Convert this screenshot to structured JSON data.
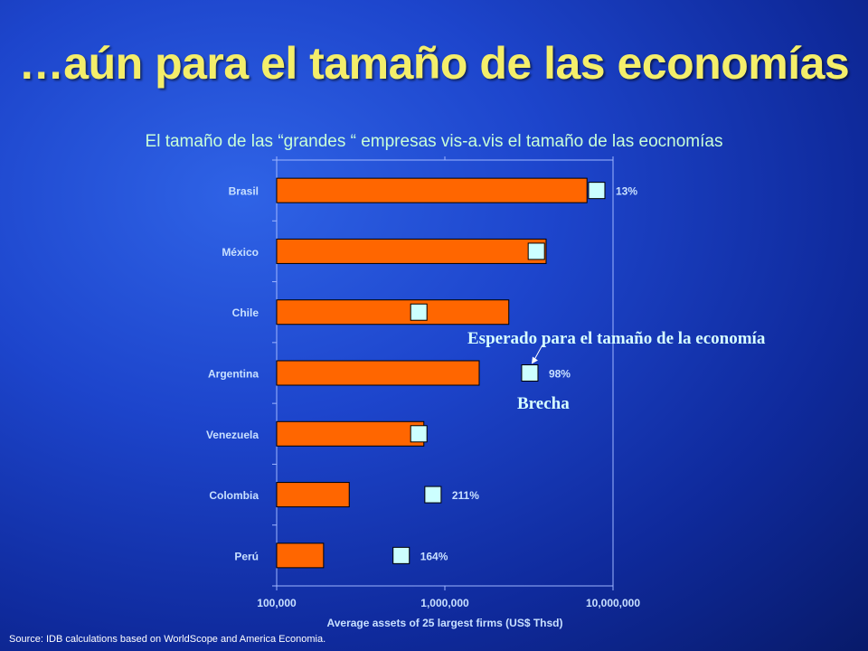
{
  "slide": {
    "title": "…aún para el tamaño de las economías",
    "subtitle": "El tamaño de las “grandes “ empresas vis-a.vis el tamaño de las eocnomías",
    "source": "Source: IDB calculations based on WorldScope and America Economia."
  },
  "annotations": {
    "expected_label": "Esperado para el tamaño de la economía",
    "gap_label": "Brecha"
  },
  "colors": {
    "bar": "#ff6600",
    "expected_marker": "#ccffff",
    "title": "#f4ee6a"
  },
  "chart_data": {
    "type": "bar",
    "orientation": "horizontal",
    "x_scale": "log",
    "categories": [
      "Brasil",
      "México",
      "Chile",
      "Argentina",
      "Venezuela",
      "Colombia",
      "Perú"
    ],
    "series": [
      {
        "values": [
          7000000,
          4000000,
          2400000,
          1600000,
          750000,
          270000,
          190000
        ]
      },
      {
        "values": [
          8000000,
          3500000,
          700000,
          3200000,
          700000,
          850000,
          550000
        ]
      }
    ],
    "gap_labels": [
      "13%",
      "",
      "",
      "98%",
      "",
      "211%",
      "164%"
    ],
    "xlabel": "Average assets of 25 largest firms (US$ Thsd)",
    "xlim": [
      100000,
      10000000
    ],
    "xticks": [
      100000,
      1000000,
      10000000
    ],
    "xtick_labels": [
      "100,000",
      "1,000,000",
      "10,000,000"
    ],
    "grid": false,
    "legend": "none"
  }
}
